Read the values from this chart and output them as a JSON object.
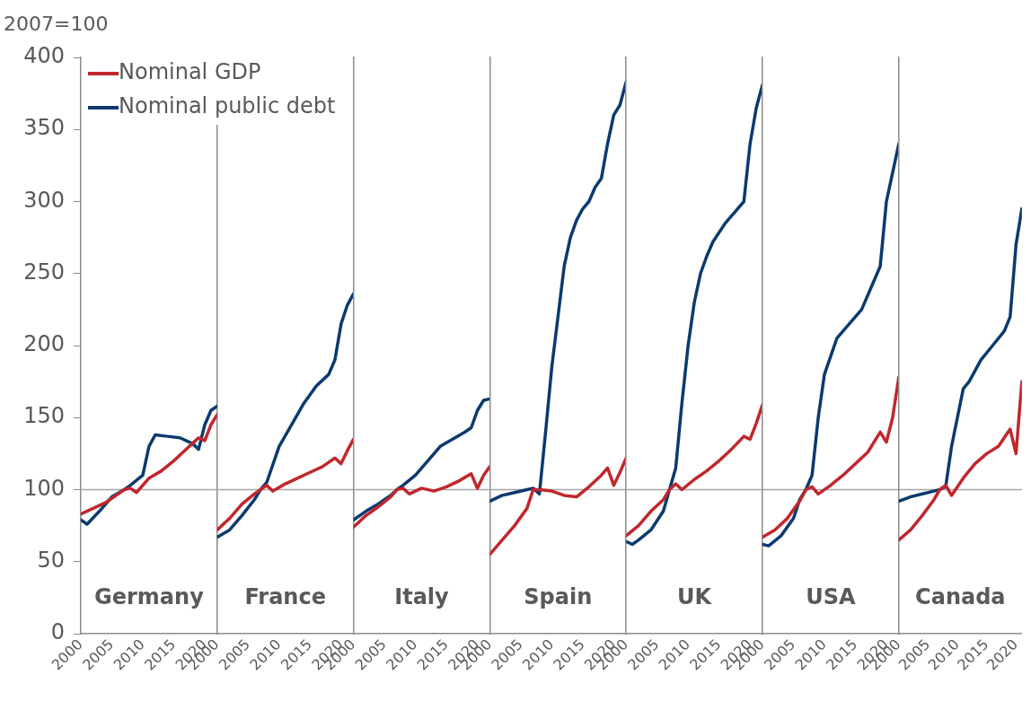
{
  "chart_data": [
    {
      "type": "line",
      "title": "Germany",
      "ylabel": "2007=100",
      "legend": "top",
      "grid": false,
      "ylim": [
        0,
        400
      ],
      "yticks": [
        0,
        50,
        100,
        150,
        200,
        250,
        300,
        350,
        400
      ],
      "xlim": [
        2000,
        2022
      ],
      "xticks": [
        2000,
        2005,
        2010,
        2015,
        2020
      ],
      "ref_lines": [
        {
          "axis": "y",
          "value": 100,
          "color": "#a6a6a6"
        }
      ],
      "series": [
        {
          "name": "Nominal GDP",
          "color": "#c0272d",
          "x": [
            2000,
            2002,
            2004,
            2006,
            2007,
            2008,
            2009,
            2011,
            2013,
            2015,
            2017,
            2018,
            2019,
            2020,
            2021,
            2022
          ],
          "values": [
            83,
            87,
            91,
            97,
            100,
            101,
            98,
            108,
            113,
            120,
            128,
            132,
            136,
            134,
            145,
            152
          ]
        },
        {
          "name": "Nominal public debt",
          "color": "#0b3a6e",
          "x": [
            2000,
            2001,
            2003,
            2005,
            2007,
            2008,
            2010,
            2011,
            2012,
            2014,
            2016,
            2018,
            2019,
            2020,
            2021,
            2022
          ],
          "values": [
            79,
            76,
            85,
            95,
            100,
            103,
            110,
            130,
            138,
            137,
            136,
            132,
            128,
            145,
            155,
            158
          ]
        }
      ]
    },
    {
      "type": "line",
      "title": "France",
      "tick_labels": "x",
      "grid": false,
      "ylim": [
        0,
        400
      ],
      "xlim": [
        2000,
        2022
      ],
      "xticks": [
        2000,
        2005,
        2010,
        2015,
        2020
      ],
      "ref_lines": [
        {
          "axis": "y",
          "value": 100,
          "color": "#a6a6a6"
        }
      ],
      "series": [
        {
          "color": "#c0272d",
          "x": [
            2000,
            2002,
            2004,
            2006,
            2007,
            2008,
            2009,
            2011,
            2013,
            2015,
            2017,
            2019,
            2020,
            2021,
            2022
          ],
          "values": [
            72,
            80,
            90,
            97,
            100,
            103,
            99,
            104,
            108,
            112,
            116,
            122,
            118,
            127,
            135
          ]
        },
        {
          "color": "#0b3a6e",
          "x": [
            2000,
            2002,
            2004,
            2006,
            2007,
            2008,
            2010,
            2012,
            2014,
            2016,
            2018,
            2019,
            2020,
            2021,
            2022
          ],
          "values": [
            67,
            72,
            82,
            93,
            100,
            105,
            130,
            145,
            160,
            172,
            180,
            190,
            215,
            228,
            236
          ]
        }
      ]
    },
    {
      "type": "line",
      "title": "Italy",
      "tick_labels": "x",
      "grid": false,
      "ylim": [
        0,
        400
      ],
      "xlim": [
        2000,
        2022
      ],
      "xticks": [
        2000,
        2005,
        2010,
        2015,
        2020
      ],
      "ref_lines": [
        {
          "axis": "y",
          "value": 100,
          "color": "#a6a6a6"
        }
      ],
      "series": [
        {
          "color": "#c0272d",
          "x": [
            2000,
            2002,
            2004,
            2006,
            2007,
            2008,
            2009,
            2011,
            2013,
            2015,
            2017,
            2019,
            2020,
            2021,
            2022
          ],
          "values": [
            74,
            82,
            88,
            95,
            100,
            101,
            97,
            101,
            99,
            102,
            106,
            111,
            101,
            110,
            116
          ]
        },
        {
          "color": "#0b3a6e",
          "x": [
            2000,
            2002,
            2004,
            2006,
            2007,
            2008,
            2010,
            2012,
            2014,
            2016,
            2018,
            2019,
            2020,
            2021,
            2022
          ],
          "values": [
            79,
            85,
            90,
            96,
            100,
            103,
            110,
            120,
            130,
            135,
            140,
            143,
            155,
            162,
            163
          ]
        }
      ]
    },
    {
      "type": "line",
      "title": "Spain",
      "tick_labels": "x",
      "grid": false,
      "ylim": [
        0,
        400
      ],
      "xlim": [
        2000,
        2022
      ],
      "xticks": [
        2000,
        2005,
        2010,
        2015,
        2020
      ],
      "ref_lines": [
        {
          "axis": "y",
          "value": 100,
          "color": "#a6a6a6"
        }
      ],
      "series": [
        {
          "color": "#c0272d",
          "x": [
            2000,
            2002,
            2004,
            2006,
            2007,
            2008,
            2010,
            2012,
            2014,
            2016,
            2018,
            2019,
            2020,
            2021,
            2022
          ],
          "values": [
            55,
            65,
            75,
            87,
            100,
            100,
            99,
            96,
            95,
            102,
            110,
            115,
            103,
            112,
            122
          ]
        },
        {
          "color": "#0b3a6e",
          "x": [
            2000,
            2002,
            2004,
            2006,
            2007,
            2008,
            2009,
            2010,
            2011,
            2012,
            2013,
            2014,
            2015,
            2016,
            2017,
            2018,
            2019,
            2020,
            2021,
            2022
          ],
          "values": [
            92,
            96,
            98,
            100,
            101,
            97,
            140,
            185,
            220,
            255,
            275,
            287,
            295,
            300,
            310,
            316,
            340,
            360,
            367,
            383
          ]
        }
      ]
    },
    {
      "type": "line",
      "title": "UK",
      "tick_labels": "x",
      "grid": false,
      "ylim": [
        0,
        400
      ],
      "xlim": [
        2000,
        2022
      ],
      "xticks": [
        2000,
        2005,
        2010,
        2015,
        2020
      ],
      "ref_lines": [
        {
          "axis": "y",
          "value": 100,
          "color": "#a6a6a6"
        }
      ],
      "series": [
        {
          "color": "#c0272d",
          "x": [
            2000,
            2002,
            2004,
            2006,
            2007,
            2008,
            2009,
            2011,
            2013,
            2015,
            2017,
            2019,
            2020,
            2021,
            2022
          ],
          "values": [
            68,
            75,
            85,
            93,
            100,
            104,
            100,
            107,
            113,
            120,
            128,
            137,
            135,
            146,
            159
          ]
        },
        {
          "color": "#0b3a6e",
          "x": [
            2000,
            2001,
            2002,
            2004,
            2006,
            2007,
            2008,
            2009,
            2010,
            2011,
            2012,
            2013,
            2014,
            2016,
            2018,
            2019,
            2020,
            2021,
            2022
          ],
          "values": [
            64,
            62,
            65,
            72,
            85,
            100,
            115,
            160,
            200,
            230,
            250,
            262,
            272,
            285,
            295,
            300,
            340,
            365,
            381
          ]
        }
      ]
    },
    {
      "type": "line",
      "title": "USA",
      "tick_labels": "x",
      "grid": false,
      "ylim": [
        0,
        400
      ],
      "xlim": [
        2000,
        2022
      ],
      "xticks": [
        2000,
        2005,
        2010,
        2015,
        2020
      ],
      "ref_lines": [
        {
          "axis": "y",
          "value": 100,
          "color": "#a6a6a6"
        }
      ],
      "series": [
        {
          "color": "#c0272d",
          "x": [
            2000,
            2002,
            2004,
            2006,
            2007,
            2008,
            2009,
            2011,
            2013,
            2015,
            2017,
            2019,
            2020,
            2021,
            2022
          ],
          "values": [
            67,
            72,
            80,
            92,
            100,
            102,
            97,
            103,
            110,
            118,
            126,
            140,
            133,
            150,
            178
          ]
        },
        {
          "color": "#0b3a6e",
          "x": [
            2000,
            2001,
            2003,
            2005,
            2006,
            2007,
            2008,
            2009,
            2010,
            2012,
            2014,
            2016,
            2018,
            2019,
            2020,
            2021,
            2022
          ],
          "values": [
            62,
            61,
            68,
            80,
            93,
            100,
            110,
            150,
            180,
            205,
            215,
            225,
            245,
            255,
            300,
            320,
            340
          ]
        }
      ]
    },
    {
      "type": "line",
      "title": "Canada",
      "tick_labels": "x",
      "grid": false,
      "ylim": [
        0,
        400
      ],
      "xlim": [
        2000,
        2021
      ],
      "xticks": [
        2000,
        2005,
        2010,
        2015,
        2020
      ],
      "ref_lines": [
        {
          "axis": "y",
          "value": 100,
          "color": "#a6a6a6"
        }
      ],
      "series": [
        {
          "color": "#c0272d",
          "x": [
            2000,
            2002,
            2004,
            2006,
            2007,
            2008,
            2009,
            2011,
            2013,
            2015,
            2017,
            2019,
            2020,
            2020.5,
            2021
          ],
          "values": [
            65,
            72,
            82,
            93,
            100,
            103,
            96,
            108,
            118,
            125,
            130,
            142,
            125,
            150,
            175
          ]
        },
        {
          "color": "#0b3a6e",
          "x": [
            2000,
            2002,
            2004,
            2006,
            2007,
            2008,
            2009,
            2010,
            2011,
            2012,
            2014,
            2016,
            2018,
            2019,
            2020,
            2021
          ],
          "values": [
            92,
            95,
            97,
            99,
            100,
            102,
            130,
            150,
            170,
            175,
            190,
            200,
            210,
            220,
            270,
            295
          ]
        }
      ]
    }
  ]
}
